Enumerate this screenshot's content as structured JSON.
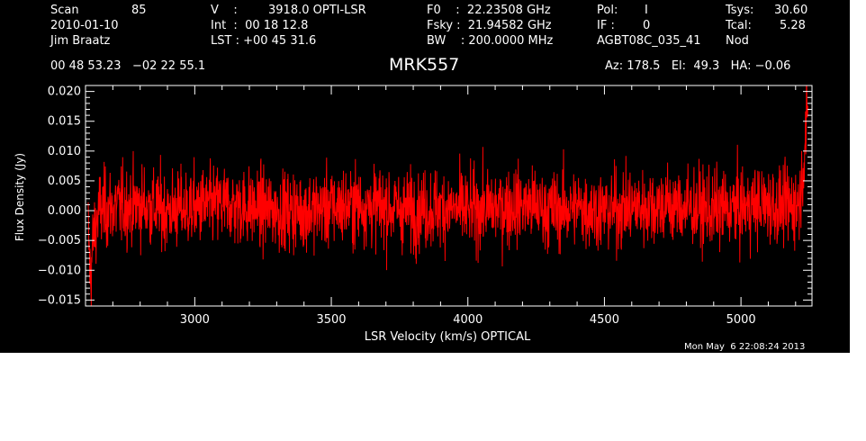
{
  "header": {
    "scan_label": "Scan",
    "scan_value": "85",
    "date": "2010-01-10",
    "observer": "Jim Braatz",
    "v_label": "V    :",
    "v_value": "3918.0 OPTI-LSR",
    "int_text": "Int  :  00 18 12.8",
    "lst_text": "LST : +00 45 31.6",
    "f0_text": "F0    :  22.23508 GHz",
    "fsky_text": "Fsky :  21.94582 GHz",
    "bw_text": "BW    : 200.0000 MHz",
    "pol_label": "Pol:",
    "pol_value": "I",
    "if_label": "IF :",
    "if_value": "0",
    "project": "AGBT08C_035_41",
    "tsys_label": "Tsys:",
    "tsys_value": "30.60",
    "tcal_label": "Tcal:",
    "tcal_value": "5.28",
    "nod": "Nod",
    "coords": "00 48 53.23   −02 22 55.1",
    "source": "MRK557",
    "azel": "Az: 178.5   El:  49.3   HA: −0.06",
    "timestamp": "Mon May  6 22:08:24 2013"
  },
  "colors": {
    "background": "#000000",
    "axes": "#ffffff",
    "trace": "#ff0000"
  },
  "chart_data": {
    "type": "line",
    "title": "MRK557",
    "xlabel": "LSR Velocity (km/s) OPTICAL",
    "ylabel": "Flux Density (Jy)",
    "xlim": [
      2600,
      5260
    ],
    "ylim": [
      -0.016,
      0.021
    ],
    "xticks": [
      3000,
      3500,
      4000,
      4500,
      5000
    ],
    "xtick_labels": [
      "3000",
      "3500",
      "4000",
      "4500",
      "5000"
    ],
    "yticks": [
      -0.015,
      -0.01,
      -0.005,
      0.0,
      0.005,
      0.01,
      0.015,
      0.02
    ],
    "ytick_labels": [
      "−0.015",
      "−0.010",
      "−0.005",
      "0.000",
      "0.005",
      "0.010",
      "0.015",
      "0.020"
    ],
    "grid": false,
    "series": [
      {
        "color": "#ff0000",
        "x": [
          2610,
          2615,
          2620,
          2625,
          2635,
          2650,
          2700,
          2800,
          2900,
          3000,
          3100,
          3200,
          3300,
          3400,
          3500,
          3600,
          3700,
          3800,
          3900,
          4000,
          4100,
          4200,
          4300,
          4400,
          4500,
          4600,
          4700,
          4800,
          4900,
          5000,
          5100,
          5150,
          5200,
          5215,
          5225,
          5235,
          5245
        ],
        "y": [
          -0.003,
          -0.009,
          -0.0115,
          -0.006,
          -0.003,
          0.0,
          0.0005,
          0.001,
          0.0,
          0.0005,
          0.001,
          0.0005,
          0.0,
          0.0,
          0.0005,
          0.001,
          0.0005,
          0.0,
          0.0005,
          0.0,
          0.0005,
          0.001,
          0.0,
          0.0005,
          0.0,
          0.0005,
          0.001,
          0.0005,
          0.0,
          0.0005,
          0.001,
          0.0005,
          0.001,
          0.002,
          0.006,
          0.012,
          0.016
        ],
        "noise_rms": 0.0033
      }
    ]
  }
}
